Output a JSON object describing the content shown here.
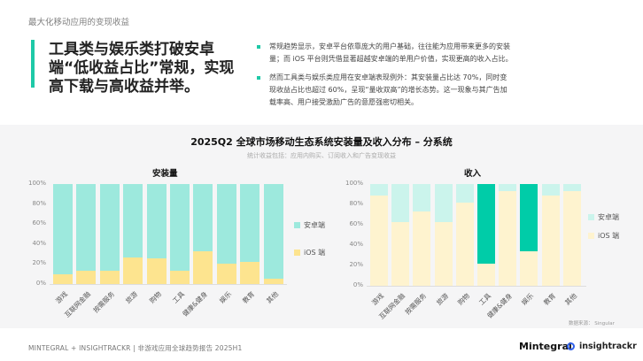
{
  "kicker": "最大化移动应用的变现收益",
  "headline": "工具类与娱乐类打破安卓端“低收益占比”常规，实现高下载与高收益并举。",
  "bullets": [
    "常规趋势显示，安卓平台依靠庞大的用户基础，往往能为应用带来更多的安装量；而 iOS 平台则凭借显著超越安卓端的单用户价值，实现更高的收入占比。",
    "然而工具类与娱乐类应用在安卓端表现例外：其安装量占比达 70%，同时变现收益占比也超过 60%，呈现“量收双高”的增长态势。这一现象与其广告加载率高、用户接受激励广告的意愿强密切相关。"
  ],
  "colors": {
    "accent": "#1ec9a7",
    "installs_android": "#9de9dd",
    "installs_ios": "#fde48f",
    "revenue_android": "#cbf4ec",
    "revenue_android_highlight": "#00cca8",
    "revenue_ios": "#fef3cf"
  },
  "chart_title": "2025Q2  全球市场移动生态系统安装量及收入分布 – 分系统",
  "chart_subtitle": "统计收益包括：应用内购买、订阅收入和广告变现收益",
  "source": "数据来源：  Singular",
  "footer": "MINTEGRAL + INSIGHTRACKR  |  非游戏应用全球趋势报告 2025H1",
  "logos": {
    "mintegral": "Mintegral",
    "insightrackr": "insightrackr"
  },
  "chart_data": [
    {
      "type": "bar",
      "stacked": true,
      "title": "安装量",
      "categories": [
        "游戏",
        "互联网金融",
        "按需服务",
        "旅游",
        "购物",
        "工具",
        "健康&健身",
        "娱乐",
        "教育",
        "其他"
      ],
      "series": [
        {
          "name": "iOS 端",
          "values": [
            10,
            13,
            13,
            27,
            26,
            13,
            33,
            20,
            22,
            5
          ]
        },
        {
          "name": "安卓端",
          "values": [
            90,
            87,
            87,
            73,
            74,
            87,
            67,
            80,
            78,
            95
          ]
        }
      ],
      "yticks": [
        "0%",
        "20%",
        "40%",
        "60%",
        "80%",
        "100%"
      ],
      "ylim": [
        0,
        100
      ],
      "legend_position": "right",
      "grid": false
    },
    {
      "type": "bar",
      "stacked": true,
      "title": "收入",
      "categories": [
        "游戏",
        "互联网金融",
        "按需服务",
        "旅游",
        "购物",
        "工具",
        "健康&健身",
        "娱乐",
        "教育",
        "其他"
      ],
      "series": [
        {
          "name": "iOS 端",
          "values": [
            89,
            63,
            73,
            63,
            82,
            22,
            93,
            34,
            89,
            93
          ]
        },
        {
          "name": "安卓端",
          "values": [
            11,
            37,
            27,
            37,
            18,
            78,
            7,
            66,
            11,
            7
          ]
        }
      ],
      "highlighted_categories": [
        "工具",
        "娱乐"
      ],
      "yticks": [
        "0%",
        "20%",
        "40%",
        "60%",
        "80%",
        "100%"
      ],
      "ylim": [
        0,
        100
      ],
      "legend_position": "right",
      "grid": false
    }
  ]
}
